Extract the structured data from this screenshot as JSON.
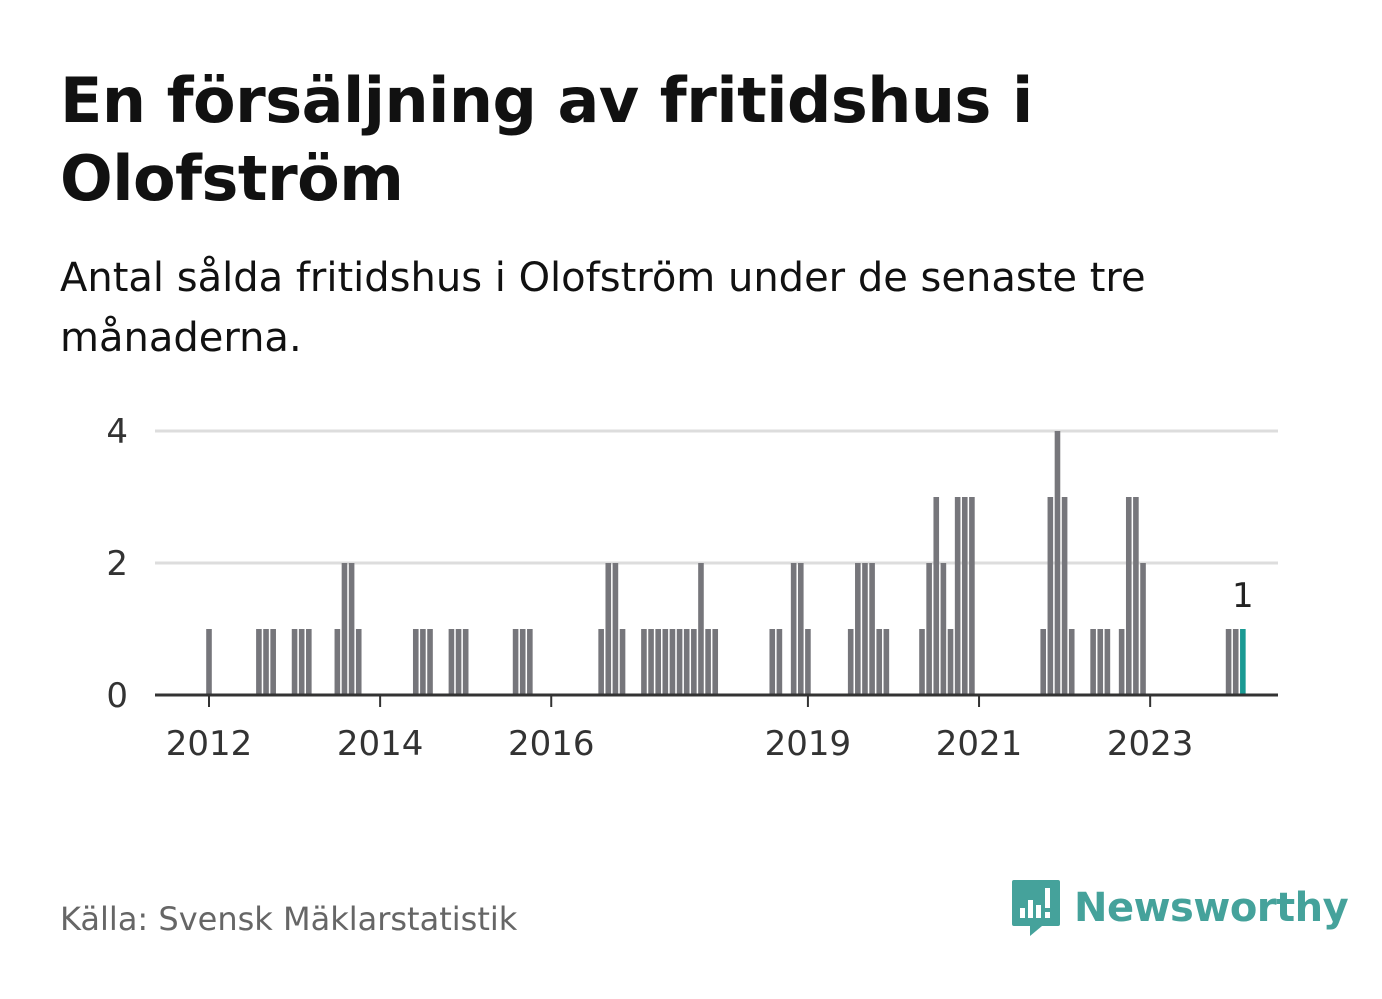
{
  "title": "En försäljning av fritidshus i Olofström",
  "subtitle": "Antal sålda fritidshus i Olofström under de senaste tre månaderna.",
  "source": "Källa: Svensk Mäklarstatistik",
  "logo": {
    "text": "Newsworthy",
    "icon": "newsworthy-logo-icon",
    "color": "#45a29b"
  },
  "colors": {
    "bar": "#76767b",
    "highlight": "#1a9a93",
    "grid": "#dddddd",
    "axis": "#333333"
  },
  "chart_data": {
    "type": "bar",
    "x_tick_labels": [
      "2012",
      "2014",
      "2016",
      "2019",
      "2021",
      "2023"
    ],
    "y_ticks": [
      0,
      2,
      4
    ],
    "ylim": [
      0,
      4
    ],
    "grid": true,
    "highlight_label": "1",
    "months": [
      "2011-06",
      "2011-07",
      "2011-08",
      "2011-09",
      "2011-10",
      "2011-11",
      "2011-12",
      "2012-01",
      "2012-02",
      "2012-03",
      "2012-04",
      "2012-05",
      "2012-06",
      "2012-07",
      "2012-08",
      "2012-09",
      "2012-10",
      "2012-11",
      "2012-12",
      "2013-01",
      "2013-02",
      "2013-03",
      "2013-04",
      "2013-05",
      "2013-06",
      "2013-07",
      "2013-08",
      "2013-09",
      "2013-10",
      "2013-11",
      "2013-12",
      "2014-01",
      "2014-02",
      "2014-03",
      "2014-04",
      "2014-05",
      "2014-06",
      "2014-07",
      "2014-08",
      "2014-09",
      "2014-10",
      "2014-11",
      "2014-12",
      "2015-01",
      "2015-02",
      "2015-03",
      "2015-04",
      "2015-05",
      "2015-06",
      "2015-07",
      "2015-08",
      "2015-09",
      "2015-10",
      "2015-11",
      "2015-12",
      "2016-01",
      "2016-02",
      "2016-03",
      "2016-04",
      "2016-05",
      "2016-06",
      "2016-07",
      "2016-08",
      "2016-09",
      "2016-10",
      "2016-11",
      "2016-12",
      "2017-01",
      "2017-02",
      "2017-03",
      "2017-04",
      "2017-05",
      "2017-06",
      "2017-07",
      "2017-08",
      "2017-09",
      "2017-10",
      "2017-11",
      "2017-12",
      "2018-01",
      "2018-02",
      "2018-03",
      "2018-04",
      "2018-05",
      "2018-06",
      "2018-07",
      "2018-08",
      "2018-09",
      "2018-10",
      "2018-11",
      "2018-12",
      "2019-01",
      "2019-02",
      "2019-03",
      "2019-04",
      "2019-05",
      "2019-06",
      "2019-07",
      "2019-08",
      "2019-09",
      "2019-10",
      "2019-11",
      "2019-12",
      "2020-01",
      "2020-02",
      "2020-03",
      "2020-04",
      "2020-05",
      "2020-06",
      "2020-07",
      "2020-08",
      "2020-09",
      "2020-10",
      "2020-11",
      "2020-12",
      "2021-01",
      "2021-02",
      "2021-03",
      "2021-04",
      "2021-05",
      "2021-06",
      "2021-07",
      "2021-08",
      "2021-09",
      "2021-10",
      "2021-11",
      "2021-12",
      "2022-01",
      "2022-02",
      "2022-03",
      "2022-04",
      "2022-05",
      "2022-06",
      "2022-07",
      "2022-08",
      "2022-09",
      "2022-10",
      "2022-11",
      "2022-12",
      "2023-01",
      "2023-02",
      "2023-03",
      "2023-04",
      "2023-05",
      "2023-06",
      "2023-07",
      "2023-08",
      "2023-09",
      "2023-10",
      "2023-11",
      "2023-12",
      "2024-01",
      "2024-02"
    ],
    "values": [
      0,
      0,
      0,
      0,
      0,
      0,
      0,
      1,
      0,
      0,
      0,
      0,
      0,
      0,
      1,
      1,
      1,
      0,
      0,
      1,
      1,
      1,
      0,
      0,
      0,
      1,
      2,
      2,
      1,
      0,
      0,
      0,
      0,
      0,
      0,
      0,
      1,
      1,
      1,
      0,
      0,
      1,
      1,
      1,
      0,
      0,
      0,
      0,
      0,
      0,
      1,
      1,
      1,
      0,
      0,
      0,
      0,
      0,
      0,
      0,
      0,
      0,
      1,
      2,
      2,
      1,
      0,
      0,
      1,
      1,
      1,
      1,
      1,
      1,
      1,
      1,
      2,
      1,
      1,
      0,
      0,
      0,
      0,
      0,
      0,
      0,
      1,
      1,
      0,
      2,
      2,
      1,
      0,
      0,
      0,
      0,
      0,
      1,
      2,
      2,
      2,
      1,
      1,
      0,
      0,
      0,
      0,
      1,
      2,
      3,
      2,
      1,
      3,
      3,
      3,
      0,
      0,
      0,
      0,
      0,
      0,
      0,
      0,
      0,
      1,
      3,
      4,
      3,
      1,
      0,
      0,
      1,
      1,
      1,
      0,
      1,
      3,
      3,
      2,
      0,
      0,
      0,
      0,
      0,
      0,
      0,
      0,
      0,
      0,
      0,
      1,
      1,
      1
    ],
    "highlight_index": 152
  }
}
